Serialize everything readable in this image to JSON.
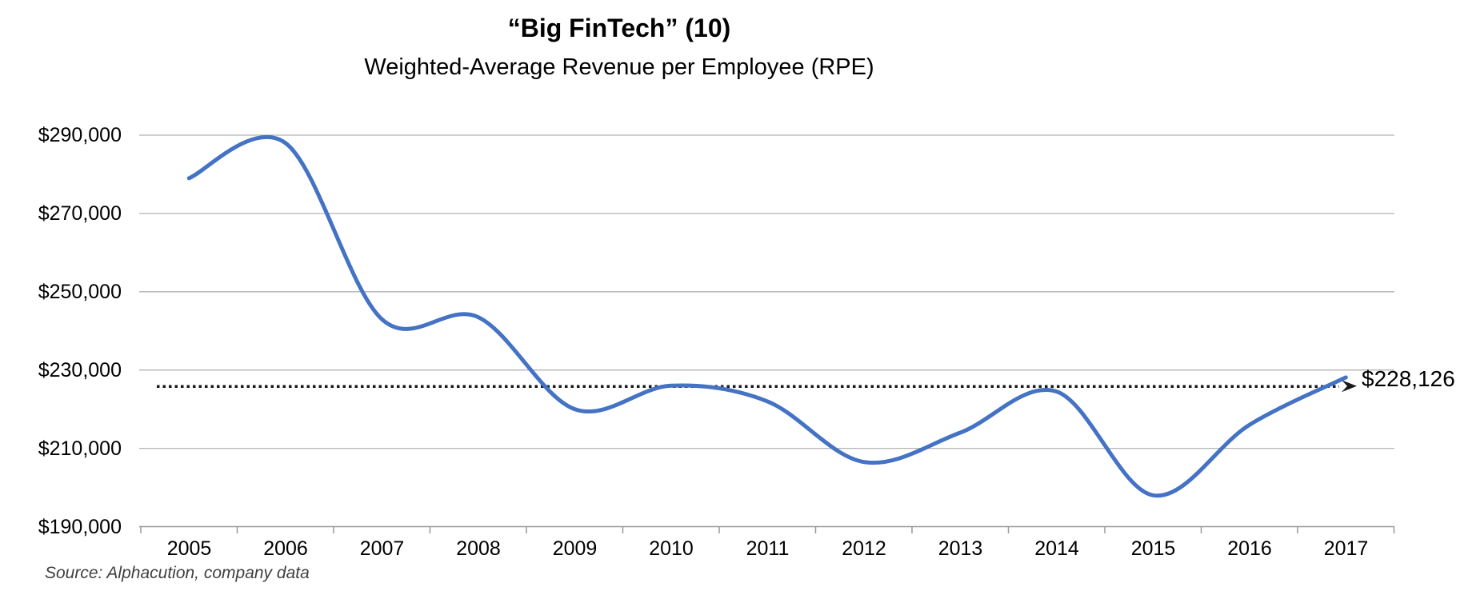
{
  "title": "“Big FinTech” (10)",
  "subtitle": "Weighted-Average Revenue per Employee (RPE)",
  "source_note": "Source: Alphacution, company data",
  "annotation": {
    "value_label": "$228,126"
  },
  "colors": {
    "line": "#4472C4",
    "gridline": "#B3B3B3",
    "axis": "#999999",
    "reference": "#1A1A1A",
    "text": "#000000",
    "source_text": "#3F3F3F"
  },
  "chart_data": {
    "type": "line",
    "title": "“Big FinTech” (10)",
    "subtitle": "Weighted-Average Revenue per Employee (RPE)",
    "categories": [
      "2005",
      "2006",
      "2007",
      "2008",
      "2009",
      "2010",
      "2011",
      "2012",
      "2013",
      "2014",
      "2015",
      "2016",
      "2017"
    ],
    "series": [
      {
        "name": "Weighted-Average Revenue per Employee (RPE)",
        "color": "#4472C4",
        "smooth": true,
        "values": [
          279000,
          288000,
          243000,
          243500,
          220000,
          226000,
          222000,
          206500,
          214000,
          224500,
          198000,
          216000,
          228126
        ]
      }
    ],
    "xlabel": "",
    "ylabel": "",
    "ylim": [
      190000,
      290000
    ],
    "ytick_step": 20000,
    "ytick_labels": [
      "$290,000",
      "$270,000",
      "$250,000",
      "$230,000",
      "$210,000",
      "$190,000"
    ],
    "grid": "horizontal",
    "legend": "none",
    "reference_line": {
      "style": "dotted",
      "color": "#1A1A1A",
      "level": 225800,
      "arrow": "right",
      "label": "$228,126",
      "points_to_value": 228126
    }
  }
}
